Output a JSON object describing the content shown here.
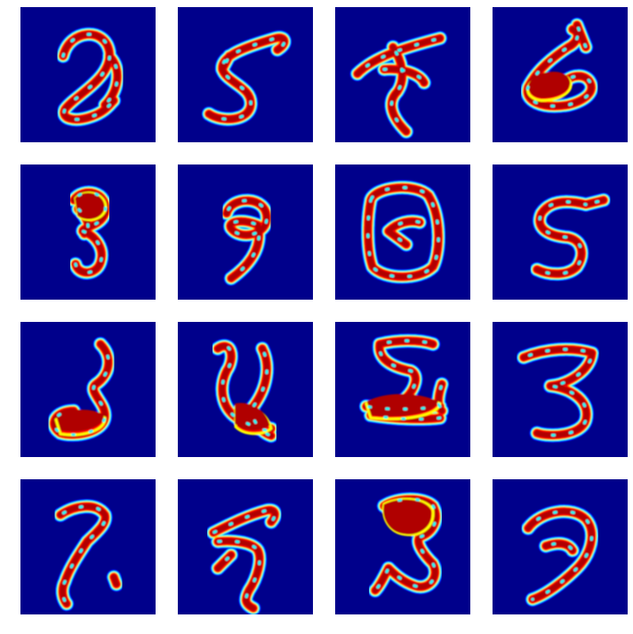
{
  "colormap": {
    "name": "jet",
    "background": "#00008b",
    "stops": [
      "#00008b",
      "#0000ff",
      "#00ffff",
      "#ffff00",
      "#ff0000",
      "#800000"
    ]
  },
  "grid": {
    "rows": 4,
    "cols": 4
  },
  "tiles": [
    {
      "depicts": "digit-like-2"
    },
    {
      "depicts": "digit-like-5"
    },
    {
      "depicts": "digit-like-7"
    },
    {
      "depicts": "digit-like-6"
    },
    {
      "depicts": "digit-like-3"
    },
    {
      "depicts": "digit-like-9"
    },
    {
      "depicts": "digit-like-0"
    },
    {
      "depicts": "digit-like-5"
    },
    {
      "depicts": "digit-like-5"
    },
    {
      "depicts": "digit-like-9"
    },
    {
      "depicts": "digit-like-2"
    },
    {
      "depicts": "digit-like-3"
    },
    {
      "depicts": "digit-like-7"
    },
    {
      "depicts": "digit-like-7"
    },
    {
      "depicts": "digit-like-3"
    },
    {
      "depicts": "digit-like-3"
    }
  ]
}
